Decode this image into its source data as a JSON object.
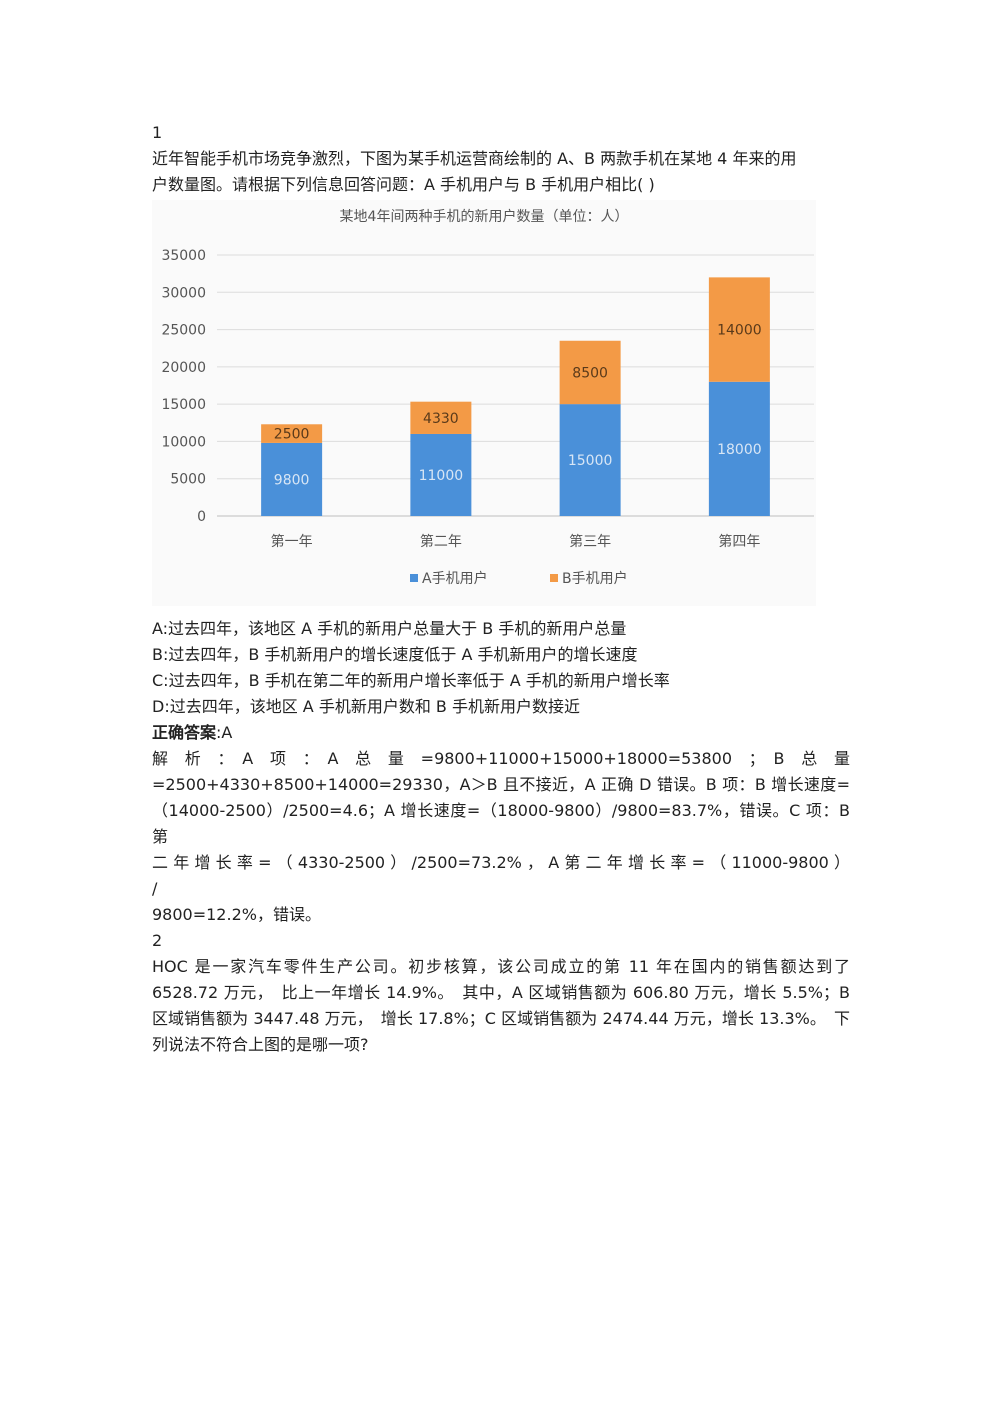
{
  "q1": {
    "number": "1",
    "stem_line1": "近年智能手机市场竞争激烈，下图为某手机运营商绘制的 A、B 两款手机在某地 4 年来的用",
    "stem_line2": "户数量图。请根据下列信息回答问题：A 手机用户与 B 手机用户相比( )",
    "options": [
      "A:过去四年，该地区 A 手机的新用户总量大于 B 手机的新用户总量",
      "B:过去四年，B 手机新用户的增长速度低于 A 手机新用户的增长速度",
      "C:过去四年，B 手机在第二年的新用户增长率低于 A 手机的新用户增长率",
      "D:过去四年，该地区 A 手机新用户数和 B 手机新用户数接近"
    ],
    "answer_label": "正确答案",
    "answer_value": ":A",
    "analysis_lines": [
      "解　析　：　A　项　：　A　总　量　=9800+11000+15000+18000=53800　；　B　总　量",
      "=2500+4330+8500+14000=29330，A＞B 且不接近，A 正确 D 错误。B 项：B 增长速度=",
      "（14000-2500）/2500=4.6；A 增长速度=（18000-9800）/9800=83.7%，错误。C 项：B 第",
      "二 年 增 长 率 = （ 4330-2500 ） /2500=73.2% ， A 第 二 年 增 长 率 = （ 11000-9800 ） /",
      "9800=12.2%，错误。"
    ]
  },
  "q2": {
    "number": "2",
    "lines": [
      "HOC 是一家汽车零件生产公司。初步核算，该公司成立的第 11 年在国内的销售额达到了",
      "6528.72 万元，　比上一年增长 14.9%。　其中，A 区域销售额为 606.80 万元，增长 5.5%；B",
      "区域销售额为 3447.48 万元，　增长 17.8%；C 区域销售额为 2474.44 万元，增长 13.3%。　下",
      "列说法不符合上图的是哪一项?"
    ]
  },
  "chart_data": {
    "type": "bar",
    "stacked": true,
    "title": "某地4年间两种手机的新用户数量（单位：人）",
    "categories": [
      "第一年",
      "第二年",
      "第三年",
      "第四年"
    ],
    "series": [
      {
        "name": "A手机用户",
        "values": [
          9800,
          11000,
          15000,
          18000
        ],
        "color": "#4a90d9"
      },
      {
        "name": "B手机用户",
        "values": [
          2500,
          4330,
          8500,
          14000
        ],
        "color": "#f39a46"
      }
    ],
    "ylim": [
      0,
      35000
    ],
    "yticks": [
      0,
      5000,
      10000,
      15000,
      20000,
      25000,
      30000,
      35000
    ],
    "grid": true,
    "legend": "bottom"
  }
}
